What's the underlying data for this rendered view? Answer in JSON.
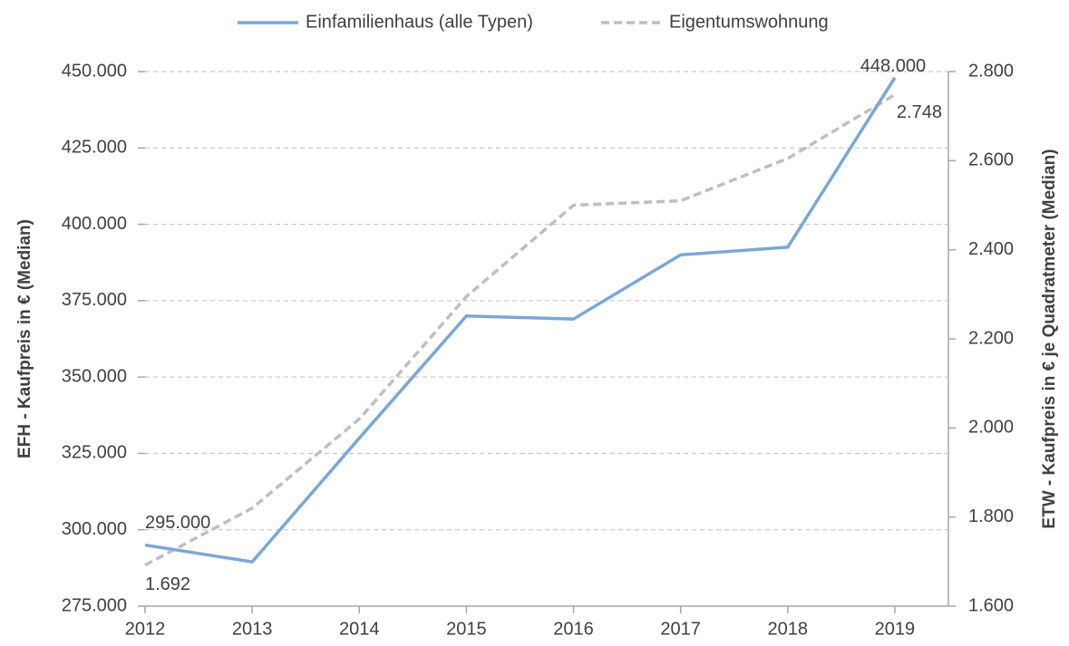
{
  "chart_data": {
    "type": "line",
    "legend": "top",
    "grid": true,
    "y_label": "EFH - Kaufpreis in € (Median)",
    "y2_label": "ETW - Kaufpreis in € je Quadratmeter (Median)",
    "x": [
      2012,
      2013,
      2014,
      2015,
      2016,
      2017,
      2018,
      2019
    ],
    "xlim": [
      2012,
      2019.5
    ],
    "xticks": [
      2012,
      2013,
      2014,
      2015,
      2016,
      2017,
      2018,
      2019
    ],
    "ylim": [
      275000,
      450000
    ],
    "yticks": [
      {
        "value": 275000,
        "label": "275.000"
      },
      {
        "value": 300000,
        "label": "300.000"
      },
      {
        "value": 325000,
        "label": "325.000"
      },
      {
        "value": 350000,
        "label": "350.000"
      },
      {
        "value": 375000,
        "label": "375.000"
      },
      {
        "value": 400000,
        "label": "400.000"
      },
      {
        "value": 425000,
        "label": "425.000"
      },
      {
        "value": 450000,
        "label": "450.000"
      }
    ],
    "y2lim": [
      1600,
      2800
    ],
    "y2ticks": [
      {
        "value": 1600,
        "label": "1.600"
      },
      {
        "value": 1800,
        "label": "1.800"
      },
      {
        "value": 2000,
        "label": "2.000"
      },
      {
        "value": 2200,
        "label": "2.200"
      },
      {
        "value": 2400,
        "label": "2.400"
      },
      {
        "value": 2600,
        "label": "2.600"
      },
      {
        "value": 2800,
        "label": "2.800"
      }
    ],
    "series": [
      {
        "name": "Einfamilienhaus (alle Typen)",
        "color": "#7ba7d7",
        "dashed": false,
        "axis": "y",
        "values": [
          295000,
          289500,
          330000,
          370000,
          369000,
          390000,
          392500,
          448000
        ],
        "value_labels": [
          "295.000",
          null,
          null,
          null,
          null,
          null,
          null,
          "448.000"
        ]
      },
      {
        "name": "Eigentumswohnung",
        "color": "#bfbfbf",
        "dashed": true,
        "axis": "y2",
        "values": [
          1692,
          1820,
          2020,
          2295,
          2500,
          2510,
          2605,
          2748
        ],
        "value_labels": [
          "1.692",
          null,
          null,
          null,
          null,
          null,
          null,
          "2.748"
        ]
      }
    ]
  }
}
